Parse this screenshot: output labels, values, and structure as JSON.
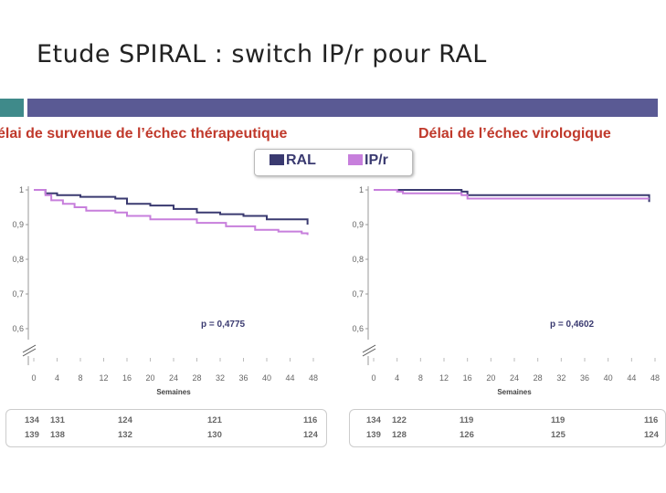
{
  "title": "Etude SPIRAL : switch IP/r pour RAL",
  "colors": {
    "ral": "#3a3a70",
    "ipr": "#c77fdc",
    "title_red": "#c0392b",
    "bar_teal": "#3f8a8a",
    "bar_purple": "#5a5a94"
  },
  "legend": {
    "ral_label": "RAL",
    "ipr_label": "IP/r"
  },
  "chart_data": [
    {
      "type": "line",
      "title": "élai de survenue de l’échec thérapeutique",
      "xlabel": "Semaines",
      "ylabel": "",
      "x_ticks": [
        "0",
        "4",
        "8",
        "12",
        "16",
        "20",
        "24",
        "28",
        "32",
        "36",
        "40",
        "44",
        "48"
      ],
      "y_ticks": [
        "1",
        "0,9",
        "0,8",
        "0,7",
        "0,6"
      ],
      "ylim": [
        0.6,
        1
      ],
      "xlim": [
        0,
        48
      ],
      "p_value": "p = 0,4775",
      "series": [
        {
          "name": "RAL",
          "points": [
            [
              0,
              1
            ],
            [
              2,
              0.99
            ],
            [
              4,
              0.985
            ],
            [
              8,
              0.98
            ],
            [
              14,
              0.975
            ],
            [
              16,
              0.96
            ],
            [
              20,
              0.955
            ],
            [
              24,
              0.945
            ],
            [
              28,
              0.935
            ],
            [
              32,
              0.93
            ],
            [
              36,
              0.925
            ],
            [
              40,
              0.915
            ],
            [
              47,
              0.915
            ],
            [
              47,
              0.9
            ]
          ]
        },
        {
          "name": "IP/r",
          "points": [
            [
              0,
              1
            ],
            [
              2,
              0.985
            ],
            [
              3,
              0.97
            ],
            [
              5,
              0.96
            ],
            [
              7,
              0.95
            ],
            [
              9,
              0.94
            ],
            [
              14,
              0.935
            ],
            [
              16,
              0.925
            ],
            [
              20,
              0.915
            ],
            [
              28,
              0.905
            ],
            [
              33,
              0.895
            ],
            [
              38,
              0.885
            ],
            [
              42,
              0.88
            ],
            [
              46,
              0.875
            ],
            [
              47,
              0.87
            ]
          ]
        }
      ],
      "at_risk": {
        "times": [
          "0",
          "4",
          "16",
          "36",
          "48"
        ],
        "ral": [
          "134",
          "131",
          "124",
          "121",
          "116"
        ],
        "ipr": [
          "139",
          "138",
          "132",
          "130",
          "124"
        ]
      }
    },
    {
      "type": "line",
      "title": "Délai de l’échec virologique",
      "xlabel": "Semaines",
      "ylabel": "",
      "x_ticks": [
        "0",
        "4",
        "8",
        "12",
        "16",
        "20",
        "24",
        "28",
        "32",
        "36",
        "40",
        "44",
        "48"
      ],
      "y_ticks": [
        "1",
        "0,9",
        "0,8",
        "0,7",
        "0,6"
      ],
      "ylim": [
        0.6,
        1
      ],
      "xlim": [
        0,
        48
      ],
      "p_value": "p = 0,4602",
      "series": [
        {
          "name": "RAL",
          "points": [
            [
              0,
              1
            ],
            [
              15,
              0.995
            ],
            [
              16,
              0.985
            ],
            [
              47,
              0.98
            ],
            [
              47,
              0.965
            ]
          ]
        },
        {
          "name": "IP/r",
          "points": [
            [
              0,
              1
            ],
            [
              4,
              0.995
            ],
            [
              5,
              0.99
            ],
            [
              15,
              0.985
            ],
            [
              16,
              0.975
            ],
            [
              47,
              0.975
            ]
          ]
        }
      ],
      "at_risk": {
        "times": [
          "0",
          "4",
          "16",
          "36",
          "48"
        ],
        "ral": [
          "134",
          "122",
          "119",
          "119",
          "116"
        ],
        "ipr": [
          "139",
          "128",
          "126",
          "125",
          "124"
        ]
      }
    }
  ]
}
